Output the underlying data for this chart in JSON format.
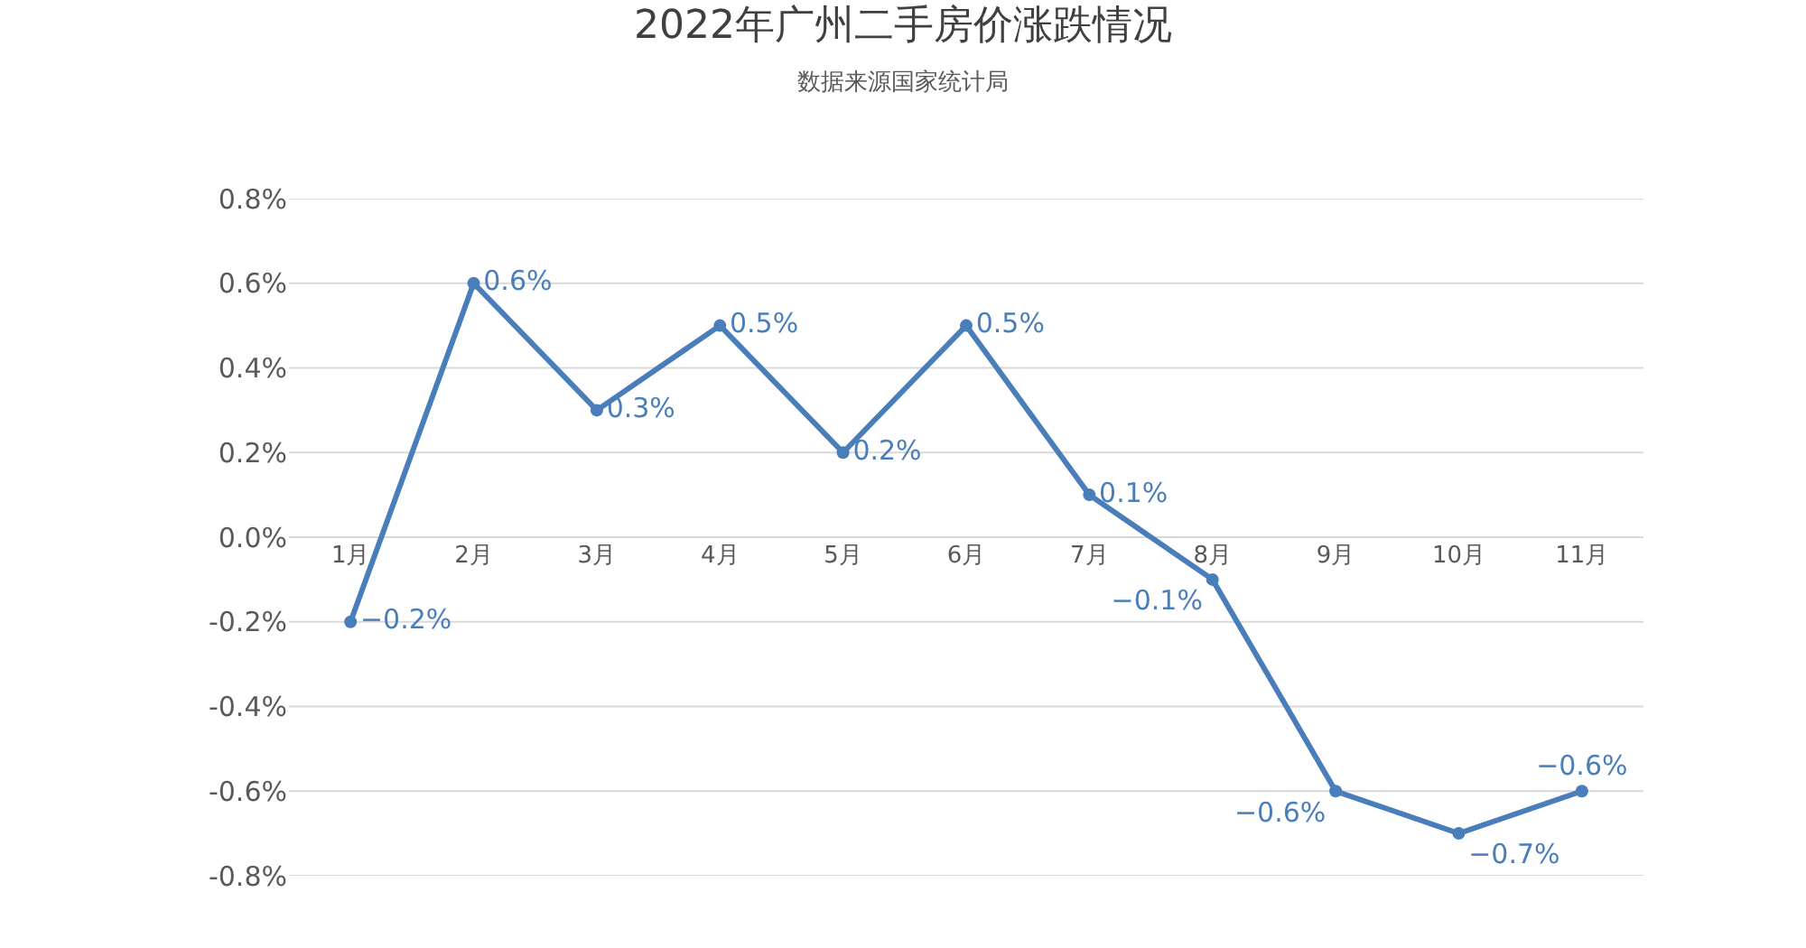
{
  "chart_data": {
    "type": "line",
    "title": "2022年广州二手房价涨跌情况",
    "subtitle": "数据来源国家统计局",
    "categories": [
      "1月",
      "2月",
      "3月",
      "4月",
      "5月",
      "6月",
      "7月",
      "8月",
      "9月",
      "10月",
      "11月"
    ],
    "series": [
      {
        "color": "#4a7ebb",
        "values": [
          -0.2,
          0.6,
          0.3,
          0.5,
          0.2,
          0.5,
          0.1,
          -0.1,
          -0.6,
          -0.7,
          -0.6
        ],
        "value_labels": [
          "−0.2%",
          "0.6%",
          "0.3%",
          "0.5%",
          "0.2%",
          "0.5%",
          "0.1%",
          "−0.1%",
          "−0.6%",
          "−0.7%",
          "−0.6%"
        ]
      }
    ],
    "ylim": [
      -0.8,
      0.8
    ],
    "yticks": [
      {
        "value": -0.8,
        "label": "-0.8%"
      },
      {
        "value": -0.6,
        "label": "-0.6%"
      },
      {
        "value": -0.4,
        "label": "-0.4%"
      },
      {
        "value": -0.2,
        "label": "-0.2%"
      },
      {
        "value": 0,
        "label": "0.0%"
      },
      {
        "value": 0.2,
        "label": "0.2%"
      },
      {
        "value": 0.4,
        "label": "0.4%"
      },
      {
        "value": 0.6,
        "label": "0.6%"
      },
      {
        "value": 0.8,
        "label": "0.8%"
      }
    ],
    "grid": "y",
    "marker": "circle",
    "line_style": "solid"
  }
}
